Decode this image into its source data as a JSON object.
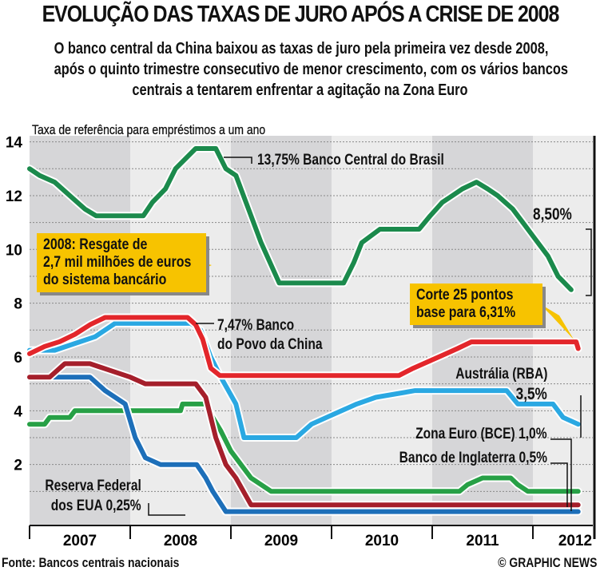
{
  "title": "EVOLUÇÃO DAS TAXAS DE JURO APÓS A CRISE DE 2008",
  "subtitle": [
    "O banco central da China baixou as taxas de juro pela primeira vez desde 2008,",
    "após o quinto trimestre consecutivo de menor crescimento, com os vários bancos",
    "centrais a tentarem enfrentar a agitação na Zona Euro"
  ],
  "footer": {
    "source": "Fonte: Bancos centrais nacionais",
    "credit": "© GRAPHIC NEWS"
  },
  "chart_data": {
    "type": "line",
    "ylabel": "Taxa de referência para empréstimos a um ano",
    "ylim": [
      0,
      14
    ],
    "yticks": [
      "2",
      "4",
      "6",
      "8",
      "10",
      "12",
      "14"
    ],
    "xlim": [
      2007,
      2012.45
    ],
    "xticks": [
      "2007",
      "2008",
      "2009",
      "2010",
      "2011",
      "2012"
    ],
    "grid": true,
    "series": [
      {
        "name": "Banco Central do Brasil",
        "color": "#1b8a4c",
        "x": [
          2007.0,
          2007.1,
          2007.25,
          2007.4,
          2007.55,
          2007.66,
          2008.13,
          2008.22,
          2008.35,
          2008.45,
          2008.65,
          2008.85,
          2008.95,
          2009.05,
          2009.2,
          2009.3,
          2009.48,
          2010.12,
          2010.22,
          2010.3,
          2010.48,
          2010.87,
          2010.98,
          2011.1,
          2011.2,
          2011.3,
          2011.44,
          2011.55,
          2011.65,
          2011.8,
          2011.9,
          2012.0,
          2012.15,
          2012.25,
          2012.38
        ],
        "y": [
          13.0,
          12.75,
          12.5,
          12.0,
          11.5,
          11.25,
          11.25,
          11.75,
          12.25,
          13.0,
          13.75,
          13.75,
          13.0,
          12.75,
          11.25,
          10.25,
          8.75,
          8.75,
          9.5,
          10.25,
          10.75,
          10.75,
          11.25,
          11.75,
          12.0,
          12.25,
          12.5,
          12.25,
          12.0,
          11.5,
          11.0,
          10.5,
          9.75,
          9.0,
          8.5
        ]
      },
      {
        "name": "Banco do Povo da China",
        "color": "#e3262b",
        "x": [
          2007.0,
          2007.15,
          2007.3,
          2007.45,
          2007.6,
          2007.75,
          2008.57,
          2008.65,
          2008.72,
          2008.8,
          2008.89,
          2010.67,
          2010.8,
          2010.95,
          2011.1,
          2011.25,
          2011.39,
          2012.43,
          2012.45
        ],
        "y": [
          6.12,
          6.39,
          6.57,
          6.84,
          7.2,
          7.47,
          7.47,
          7.2,
          6.66,
          5.58,
          5.31,
          5.31,
          5.56,
          5.81,
          6.06,
          6.31,
          6.56,
          6.56,
          6.31
        ]
      },
      {
        "name": "Austrália (RBA)",
        "color": "#2aa8e2",
        "x": [
          2007.0,
          2007.25,
          2007.45,
          2007.65,
          2007.85,
          2008.6,
          2008.7,
          2008.8,
          2008.9,
          2009.05,
          2009.13,
          2009.65,
          2009.8,
          2009.95,
          2010.1,
          2010.25,
          2010.44,
          2010.83,
          2011.74,
          2011.85,
          2012.2,
          2012.3,
          2012.45
        ],
        "y": [
          6.25,
          6.25,
          6.5,
          6.75,
          7.25,
          7.25,
          7.0,
          6.0,
          5.25,
          4.25,
          3.0,
          3.0,
          3.5,
          3.75,
          4.0,
          4.25,
          4.5,
          4.75,
          4.75,
          4.25,
          4.25,
          3.75,
          3.5
        ]
      },
      {
        "name": "Banco de Inglaterra",
        "color": "#a51f2b",
        "x": [
          2007.0,
          2007.2,
          2007.35,
          2007.6,
          2007.8,
          2008.0,
          2008.15,
          2008.65,
          2008.75,
          2008.85,
          2008.95,
          2009.05,
          2009.2,
          2012.45
        ],
        "y": [
          5.25,
          5.25,
          5.75,
          5.75,
          5.5,
          5.25,
          5.0,
          5.0,
          4.5,
          3.0,
          2.0,
          1.5,
          0.5,
          0.5
        ]
      },
      {
        "name": "Reserva Federal dos EUA",
        "color": "#1d6fb9",
        "x": [
          2007.0,
          2007.6,
          2007.75,
          2007.85,
          2007.95,
          2008.05,
          2008.15,
          2008.3,
          2008.66,
          2008.75,
          2008.82,
          2008.95,
          2012.45
        ],
        "y": [
          5.25,
          5.25,
          4.75,
          4.5,
          4.25,
          3.0,
          2.25,
          2.0,
          2.0,
          1.5,
          1.0,
          0.25,
          0.25
        ]
      },
      {
        "name": "Zona Euro (BCE)",
        "color": "#27a046",
        "x": [
          2007.0,
          2007.15,
          2007.2,
          2007.4,
          2007.45,
          2008.5,
          2008.52,
          2008.75,
          2008.82,
          2008.9,
          2009.0,
          2009.1,
          2009.2,
          2009.3,
          2009.4,
          2011.27,
          2011.35,
          2011.5,
          2011.78,
          2011.85,
          2011.95,
          2012.45
        ],
        "y": [
          3.5,
          3.5,
          3.75,
          3.75,
          4.0,
          4.0,
          4.25,
          4.25,
          3.75,
          3.25,
          2.5,
          2.0,
          1.5,
          1.25,
          1.0,
          1.0,
          1.25,
          1.5,
          1.5,
          1.25,
          1.0,
          1.0
        ]
      }
    ],
    "annotations": {
      "brazil": "13,75% Banco Central do Brasil",
      "brazil_end": "8,50%",
      "china_1": "7,47% Banco",
      "china_2": "do Povo da China",
      "australia_1": "Austrália (RBA)",
      "australia_2": "3,5%",
      "ecb": "Zona Euro (BCE) 1,0%",
      "uk_1": "Banco de Inglaterra ",
      "uk_2": "0,5%",
      "fed_1": "Reserva Federal",
      "fed_2a": "dos EUA ",
      "fed_2b": "0,25%",
      "callout_2008_bold": "2008:",
      "callout_2008_1": " Resgate de",
      "callout_2008_2a": "2,7",
      "callout_2008_2b": " mil milhões de euros",
      "callout_2008_3": "do sistema bancário",
      "callout_cut_1": "Corte 25 pontos",
      "callout_cut_2a": "base para ",
      "callout_cut_2b": "6,31%"
    }
  }
}
